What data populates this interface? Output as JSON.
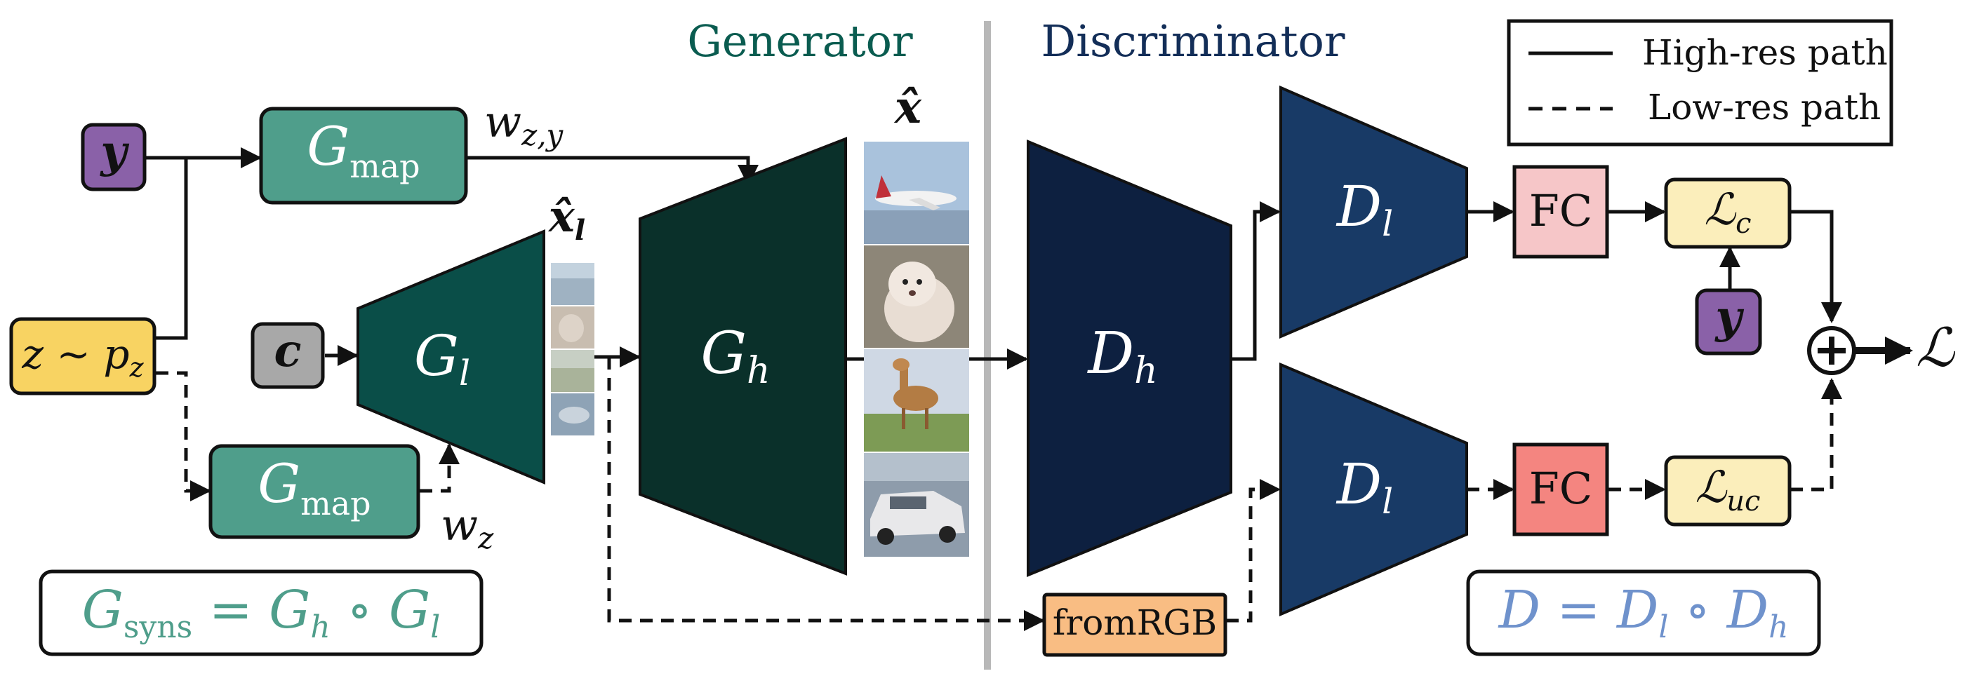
{
  "section_titles": {
    "generator": "Generator",
    "discriminator": "Discriminator"
  },
  "legend": {
    "high_res": "High-res path",
    "low_res": "Low-res path"
  },
  "inputs": {
    "y": "y",
    "z_base": "z ∼ p",
    "z_sub": "z",
    "c": "c"
  },
  "mapping": {
    "g_base": "G",
    "g_sub": "map",
    "wzy_base": "w",
    "wzy_sub": "z,y",
    "wz_base": "w",
    "wz_sub": "z"
  },
  "generator": {
    "gl_base": "G",
    "gl_sub": "l",
    "gh_base": "G",
    "gh_sub": "h",
    "xl_base": "x̂",
    "xl_sub": "l",
    "x_label": "x̂"
  },
  "discriminator": {
    "dh_base": "D",
    "dh_sub": "h",
    "dl_base": "D",
    "dl_sub": "l",
    "fc": "FC",
    "from_rgb": "fromRGB",
    "y": "y"
  },
  "losses": {
    "lc_base": "ℒ",
    "lc_sub": "c",
    "luc_base": "ℒ",
    "luc_sub": "uc",
    "total": "ℒ"
  },
  "equations": {
    "gsyns": {
      "a": "G",
      "a_sub": "syns",
      "eq": " = ",
      "b": "G",
      "b_sub": "h",
      "op": " ∘ ",
      "c": "G",
      "c_sub": "l"
    },
    "d": {
      "a": "D",
      "eq": " = ",
      "b": "D",
      "b_sub": "l",
      "op": " ∘ ",
      "c": "D",
      "c_sub": "h"
    }
  },
  "colors": {
    "teal_light": "#4f9e8b",
    "teal_dark": "#0a4e48",
    "generator_dark": "#0a302a",
    "navy": "#183a66",
    "navy_dark": "#0d2040",
    "purple": "#8a61a8",
    "yellow": "#f8d362",
    "gray": "#a8a8a8",
    "pink": "#f6c6c8",
    "salmon": "#f48580",
    "cream": "#fbeebb",
    "orange": "#f9bd83",
    "divider": "#b8b8b8",
    "title_green": "#0a5c50",
    "title_navy": "#132e58",
    "eq_green": "#4f9e8b",
    "eq_blue": "#6f92cc"
  }
}
